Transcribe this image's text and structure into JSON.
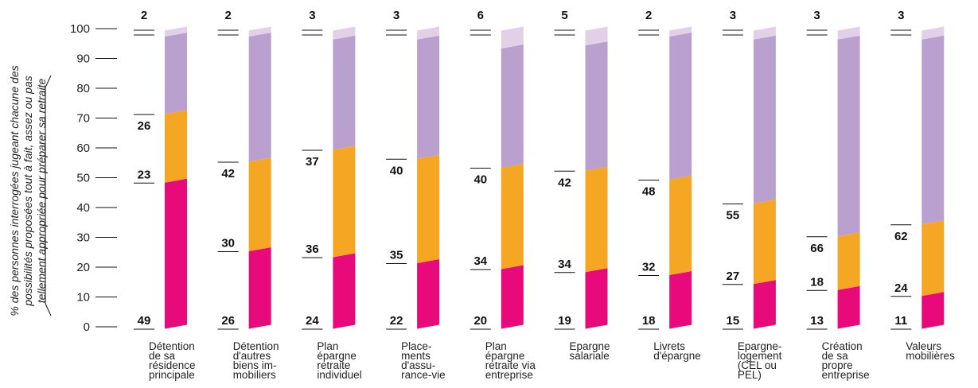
{
  "chart_data": {
    "type": "bar",
    "stacked": true,
    "ylabel": "% des personnes interrogées jugeant chacune des possibilités proposées tout à fait, assez ou pas tellement appropriée pour préparer sa retraite",
    "ylim": [
      0,
      100
    ],
    "yticks": [
      "0",
      "10",
      "20",
      "30",
      "40",
      "50",
      "60",
      "70",
      "80",
      "90",
      "100"
    ],
    "categories": [
      [
        "Détention",
        "de sa",
        "résidence",
        "principale"
      ],
      [
        "Détention",
        "d'autres",
        "biens im-",
        "mobiliers"
      ],
      [
        "Plan",
        "épargne",
        "retraite",
        "individuel"
      ],
      [
        "Place-",
        "ments",
        "d'assu-",
        "rance-vie"
      ],
      [
        "Plan",
        "épargne",
        "retraite via",
        "entreprise"
      ],
      [
        "Epargne",
        "salariale"
      ],
      [
        "Livrets",
        "d'épargne"
      ],
      [
        "Epargne-",
        "logement",
        "(CEL ou",
        "PEL)"
      ],
      [
        "Création",
        "de sa",
        "propre",
        "entreprise"
      ],
      [
        "Valeurs",
        "mobilières"
      ]
    ],
    "series": [
      {
        "values": [
          49,
          26,
          24,
          22,
          20,
          19,
          18,
          15,
          13,
          11
        ],
        "color": "#e8097a"
      },
      {
        "values": [
          23,
          30,
          36,
          35,
          34,
          34,
          32,
          27,
          18,
          24
        ],
        "color": "#f5a623"
      },
      {
        "values": [
          26,
          42,
          37,
          40,
          40,
          42,
          48,
          55,
          66,
          62
        ],
        "color": "#b9a0cf"
      },
      {
        "values": [
          2,
          2,
          3,
          3,
          6,
          5,
          2,
          3,
          3,
          3
        ],
        "color": "#e2cfe8"
      }
    ]
  }
}
